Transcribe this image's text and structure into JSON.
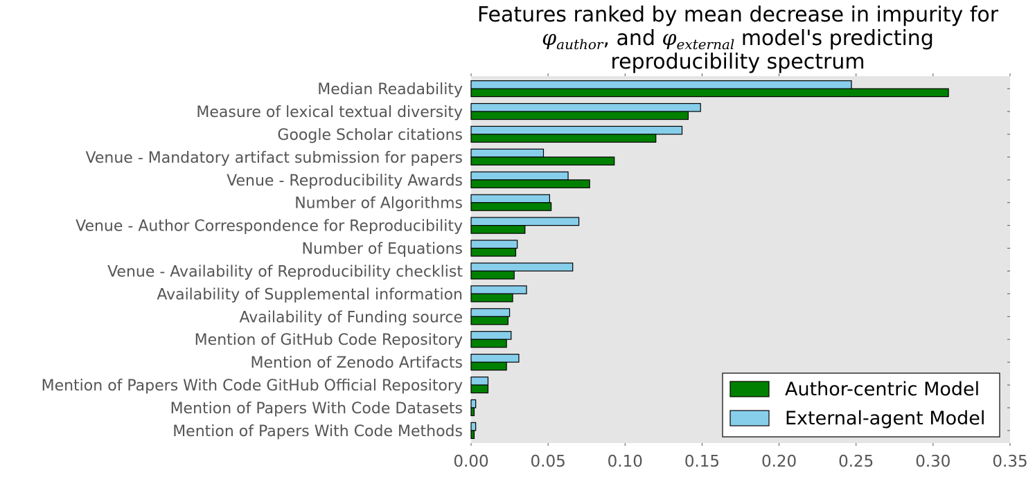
{
  "chart_data": {
    "type": "bar",
    "orientation": "horizontal",
    "title": {
      "line1": "Features ranked by mean decrease in impurity for",
      "phi_symbol": "φ",
      "author_subscript": "author",
      "external_subscript": "external",
      "and_text": ", and ",
      "line2_tail": " model's predicting",
      "line3": "reproducibility spectrum"
    },
    "xlabel": "",
    "ylabel": "",
    "xlim": [
      0.0,
      0.35
    ],
    "xticks": [
      "0.00",
      "0.05",
      "0.10",
      "0.15",
      "0.20",
      "0.25",
      "0.30",
      "0.35"
    ],
    "xtick_values": [
      0.0,
      0.05,
      0.1,
      0.15,
      0.2,
      0.25,
      0.3,
      0.35
    ],
    "categories": [
      "Median Readability",
      "Measure of lexical textual diversity",
      "Google Scholar citations",
      "Venue - Mandatory artifact submission for papers",
      "Venue - Reproducibility Awards",
      "Number of Algorithms",
      "Venue - Author Correspondence for Reproducibility",
      "Number of Equations",
      "Venue - Availability of Reproducibility checklist",
      "Availability of Supplemental information",
      "Availability of Funding source",
      "Mention of GitHub Code Repository",
      "Mention of Zenodo Artifacts",
      "Mention of Papers With Code GitHub Official Repository",
      "Mention of Papers With Code Datasets",
      "Mention of Papers With Code Methods"
    ],
    "series": [
      {
        "name": "Author-centric Model",
        "color": "#008000",
        "values": [
          0.31,
          0.141,
          0.12,
          0.093,
          0.077,
          0.052,
          0.035,
          0.029,
          0.028,
          0.027,
          0.024,
          0.023,
          0.023,
          0.011,
          0.002,
          0.002
        ]
      },
      {
        "name": "External-agent Model",
        "color": "#87ceeb",
        "values": [
          0.247,
          0.149,
          0.137,
          0.047,
          0.063,
          0.051,
          0.07,
          0.03,
          0.066,
          0.036,
          0.025,
          0.026,
          0.031,
          0.011,
          0.003,
          0.003
        ]
      }
    ],
    "legend_position": "lower-right",
    "grid": false,
    "background_color": "#e5e5e5"
  }
}
